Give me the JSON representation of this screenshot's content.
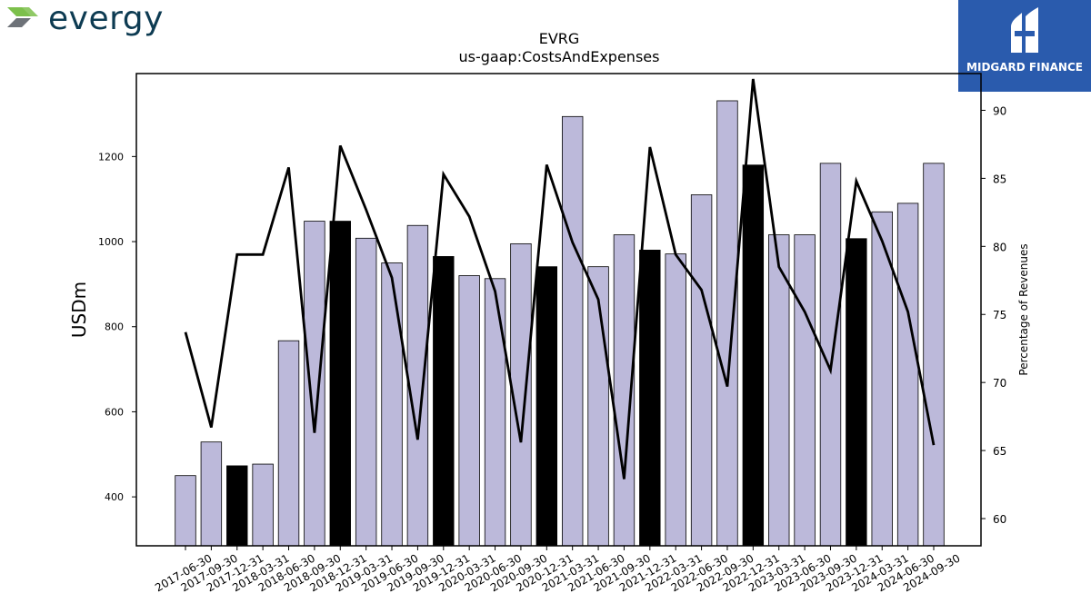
{
  "logo": {
    "text": "evergy",
    "icon": "evergy-chevron-logo"
  },
  "badge": {
    "text": "MIDGARD FINANCE",
    "icon": "midgard-logo",
    "color": "#2a5bad"
  },
  "chart_data": {
    "type": "bar",
    "title": "EVRG",
    "subtitle": "us-gaap:CostsAndExpenses",
    "ylabel": "USDm",
    "y2label": "Percentage of Revenues",
    "ylim": [
      285,
      1395
    ],
    "y2lim": [
      58,
      92.7
    ],
    "yticks": [
      400,
      600,
      800,
      1000,
      1200
    ],
    "y2ticks": [
      60,
      65,
      70,
      75,
      80,
      85,
      90
    ],
    "grid": false,
    "colors": {
      "bar": "#bcb9da",
      "highlight": "#000000",
      "line": "#000000"
    },
    "categories": [
      "2017-06-30",
      "2017-09-30",
      "2017-12-31",
      "2018-03-31",
      "2018-06-30",
      "2018-09-30",
      "2018-12-31",
      "2019-03-31",
      "2019-06-30",
      "2019-09-30",
      "2019-12-31",
      "2020-03-31",
      "2020-06-30",
      "2020-09-30",
      "2020-12-31",
      "2021-03-31",
      "2021-06-30",
      "2021-09-30",
      "2021-12-31",
      "2022-03-31",
      "2022-06-30",
      "2022-09-30",
      "2022-12-31",
      "2023-03-31",
      "2023-06-30",
      "2023-09-30",
      "2023-12-31",
      "2024-03-31",
      "2024-06-30",
      "2024-09-30"
    ],
    "series": [
      {
        "type": "bar",
        "axis": "left",
        "values": [
          450,
          529,
          473,
          477,
          767,
          1048,
          1048,
          1008,
          950,
          1038,
          965,
          920,
          913,
          995,
          941,
          1294,
          941,
          1016,
          980,
          971,
          1110,
          1331,
          1180,
          1016,
          1016,
          1184,
          1007,
          1070,
          1090,
          1184
        ],
        "highlight": [
          false,
          false,
          true,
          false,
          false,
          false,
          true,
          false,
          false,
          false,
          true,
          false,
          false,
          false,
          true,
          false,
          false,
          false,
          true,
          false,
          false,
          false,
          true,
          false,
          false,
          false,
          true,
          false,
          false,
          false
        ]
      },
      {
        "type": "line",
        "axis": "right",
        "values": [
          73.7,
          66.7,
          79.4,
          79.4,
          85.8,
          66.3,
          87.4,
          82.7,
          77.7,
          65.8,
          85.3,
          82.2,
          76.7,
          65.6,
          86.0,
          80.3,
          76.1,
          62.9,
          87.3,
          79.4,
          76.8,
          69.7,
          92.3,
          78.5,
          75.2,
          70.9,
          84.8,
          80.4,
          75.2,
          65.4
        ]
      }
    ]
  }
}
